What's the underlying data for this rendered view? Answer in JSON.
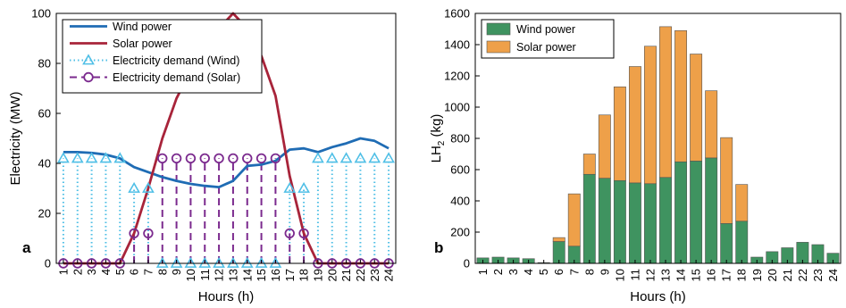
{
  "chart_data": [
    {
      "panel_label": "a",
      "type": "line",
      "xlabel": "Hours (h)",
      "ylabel": "Electricity (MW)",
      "xlim": [
        0.5,
        24.5
      ],
      "ylim": [
        0,
        100
      ],
      "x": [
        1,
        2,
        3,
        4,
        5,
        6,
        7,
        8,
        9,
        10,
        11,
        12,
        13,
        14,
        15,
        16,
        17,
        18,
        19,
        20,
        21,
        22,
        23,
        24
      ],
      "x_tick_labels": [
        "1",
        "2",
        "3",
        "4",
        "5",
        "6",
        "7",
        "8",
        "9",
        "10",
        "11",
        "12",
        "13",
        "14",
        "15",
        "16",
        "17",
        "18",
        "19",
        "20",
        "21",
        "22",
        "23",
        "24"
      ],
      "y_ticks": [
        0,
        20,
        40,
        60,
        80,
        100
      ],
      "legend_position": "top-left",
      "colors": {
        "wind": "#1f6cb4",
        "solar": "#a8243a",
        "demand_wind": "#4fbfe6",
        "demand_solar": "#7b2a8e"
      },
      "series": [
        {
          "name": "Wind power",
          "style": "solid",
          "values": [
            44.5,
            44.5,
            44.2,
            43.5,
            42,
            38.5,
            36.5,
            34.5,
            33,
            31.8,
            31,
            30.5,
            33,
            39,
            39.5,
            41,
            45.5,
            46,
            44.5,
            46.5,
            48,
            50,
            49,
            46
          ]
        },
        {
          "name": "Solar power",
          "style": "solid",
          "values": [
            0,
            0,
            0,
            0,
            0,
            12,
            30,
            50,
            66,
            77,
            85,
            94,
            100,
            94,
            83,
            67,
            35,
            12,
            0,
            0,
            0,
            0,
            0,
            0
          ]
        },
        {
          "name": "Electricity demand (Wind)",
          "style": "dotted-stem",
          "marker": "triangle",
          "values": [
            42,
            42,
            42,
            42,
            42,
            30,
            30,
            0,
            0,
            0,
            0,
            0,
            0,
            0,
            0,
            0,
            30,
            30,
            42,
            42,
            42,
            42,
            42,
            42
          ]
        },
        {
          "name": "Electricity demand (Solar)",
          "style": "dashed-stem",
          "marker": "circle",
          "values": [
            0,
            0,
            0,
            0,
            0,
            12,
            12,
            42,
            42,
            42,
            42,
            42,
            42,
            42,
            42,
            42,
            12,
            12,
            0,
            0,
            0,
            0,
            0,
            0
          ]
        }
      ]
    },
    {
      "panel_label": "b",
      "type": "bar",
      "stacked": true,
      "xlabel": "Hours (h)",
      "ylabel": "LH",
      "ylabel_subscript": "2",
      "ylabel_unit": " (kg)",
      "xlim": [
        0.5,
        24.5
      ],
      "ylim": [
        0,
        1600
      ],
      "categories": [
        "1",
        "2",
        "3",
        "4",
        "5",
        "6",
        "7",
        "8",
        "9",
        "10",
        "11",
        "12",
        "13",
        "14",
        "15",
        "16",
        "17",
        "18",
        "19",
        "20",
        "21",
        "22",
        "23",
        "24"
      ],
      "y_ticks": [
        0,
        200,
        400,
        600,
        800,
        1000,
        1200,
        1400,
        1600
      ],
      "legend_position": "top-left",
      "colors": {
        "wind": "#3f9360",
        "solar": "#eea049"
      },
      "series": [
        {
          "name": "Wind power",
          "values": [
            35,
            40,
            35,
            30,
            5,
            140,
            110,
            570,
            545,
            530,
            515,
            510,
            550,
            650,
            655,
            675,
            255,
            270,
            40,
            75,
            100,
            135,
            120,
            65
          ]
        },
        {
          "name": "Solar power",
          "values": [
            0,
            0,
            0,
            0,
            0,
            25,
            335,
            130,
            405,
            600,
            745,
            880,
            965,
            840,
            685,
            430,
            550,
            235,
            0,
            0,
            0,
            0,
            0,
            0
          ]
        }
      ]
    }
  ]
}
